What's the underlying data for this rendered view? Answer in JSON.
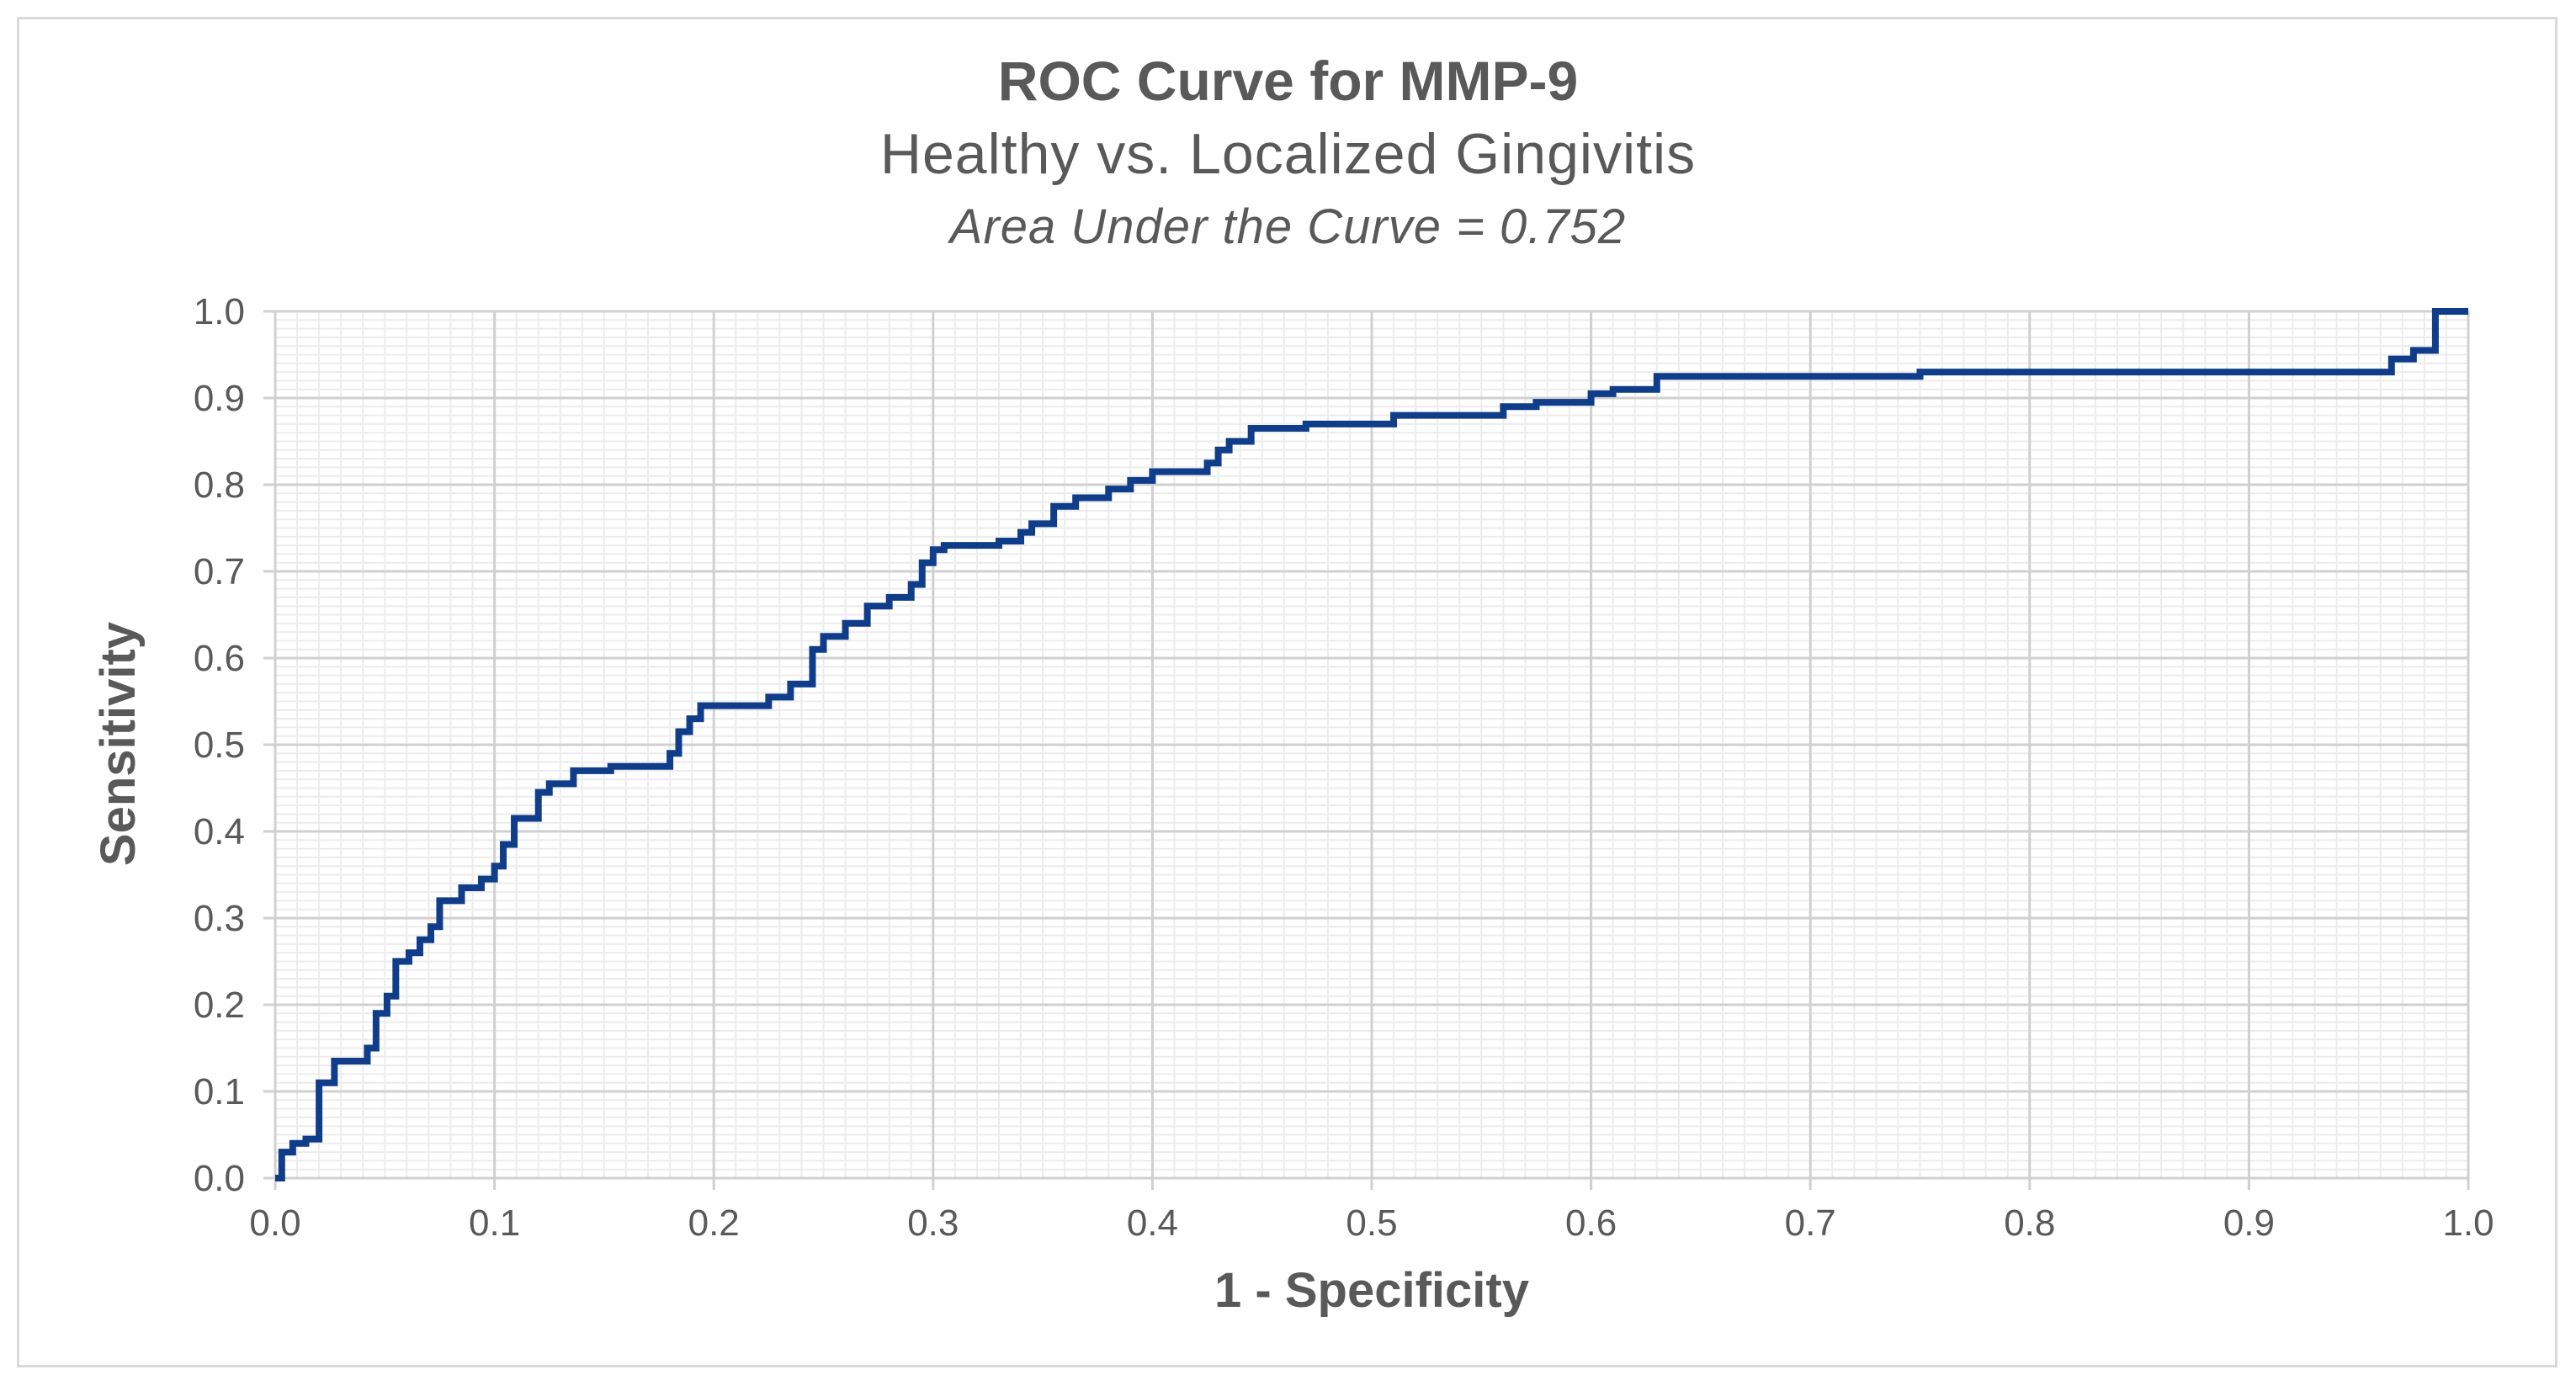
{
  "colors": {
    "line": "#0f3d8a",
    "major_grid": "#d0d0d0",
    "minor_grid": "#ececec",
    "text": "#595959"
  },
  "chart_data": {
    "type": "line",
    "title": "ROC Curve for MMP-9",
    "subtitle": "Healthy vs. Localized Gingivitis",
    "annotation": "Area Under the Curve = 0.752",
    "xlabel": "1 - Specificity",
    "ylabel": "Sensitivity",
    "xlim": [
      0,
      1
    ],
    "ylim": [
      0,
      1
    ],
    "grid": true,
    "x_ticks": [
      "0.0",
      "0.1",
      "0.2",
      "0.3",
      "0.4",
      "0.5",
      "0.6",
      "0.7",
      "0.8",
      "0.9",
      "1.0"
    ],
    "y_ticks": [
      "0.0",
      "0.1",
      "0.2",
      "0.3",
      "0.4",
      "0.5",
      "0.6",
      "0.7",
      "0.8",
      "0.9",
      "1.0"
    ],
    "series": [
      {
        "name": "MMP-9",
        "step": true,
        "points": [
          [
            0.0,
            0.0
          ],
          [
            0.003,
            0.03
          ],
          [
            0.008,
            0.04
          ],
          [
            0.014,
            0.045
          ],
          [
            0.02,
            0.05
          ],
          [
            0.02,
            0.11
          ],
          [
            0.027,
            0.135
          ],
          [
            0.042,
            0.15
          ],
          [
            0.046,
            0.19
          ],
          [
            0.051,
            0.21
          ],
          [
            0.055,
            0.25
          ],
          [
            0.061,
            0.26
          ],
          [
            0.066,
            0.275
          ],
          [
            0.071,
            0.29
          ],
          [
            0.075,
            0.32
          ],
          [
            0.085,
            0.335
          ],
          [
            0.094,
            0.345
          ],
          [
            0.1,
            0.36
          ],
          [
            0.104,
            0.385
          ],
          [
            0.109,
            0.415
          ],
          [
            0.12,
            0.445
          ],
          [
            0.125,
            0.455
          ],
          [
            0.136,
            0.47
          ],
          [
            0.153,
            0.475
          ],
          [
            0.18,
            0.49
          ],
          [
            0.184,
            0.515
          ],
          [
            0.189,
            0.53
          ],
          [
            0.194,
            0.545
          ],
          [
            0.225,
            0.555
          ],
          [
            0.235,
            0.57
          ],
          [
            0.245,
            0.61
          ],
          [
            0.25,
            0.625
          ],
          [
            0.26,
            0.64
          ],
          [
            0.27,
            0.66
          ],
          [
            0.28,
            0.67
          ],
          [
            0.29,
            0.685
          ],
          [
            0.295,
            0.71
          ],
          [
            0.3,
            0.725
          ],
          [
            0.305,
            0.73
          ],
          [
            0.33,
            0.735
          ],
          [
            0.34,
            0.745
          ],
          [
            0.345,
            0.755
          ],
          [
            0.355,
            0.775
          ],
          [
            0.365,
            0.785
          ],
          [
            0.38,
            0.795
          ],
          [
            0.39,
            0.805
          ],
          [
            0.4,
            0.815
          ],
          [
            0.425,
            0.825
          ],
          [
            0.43,
            0.84
          ],
          [
            0.435,
            0.85
          ],
          [
            0.445,
            0.865
          ],
          [
            0.47,
            0.87
          ],
          [
            0.51,
            0.88
          ],
          [
            0.56,
            0.89
          ],
          [
            0.575,
            0.895
          ],
          [
            0.6,
            0.905
          ],
          [
            0.61,
            0.91
          ],
          [
            0.63,
            0.925
          ],
          [
            0.75,
            0.93
          ],
          [
            0.965,
            0.945
          ],
          [
            0.975,
            0.955
          ],
          [
            0.985,
            1.0
          ],
          [
            1.0,
            1.0
          ]
        ]
      }
    ]
  }
}
